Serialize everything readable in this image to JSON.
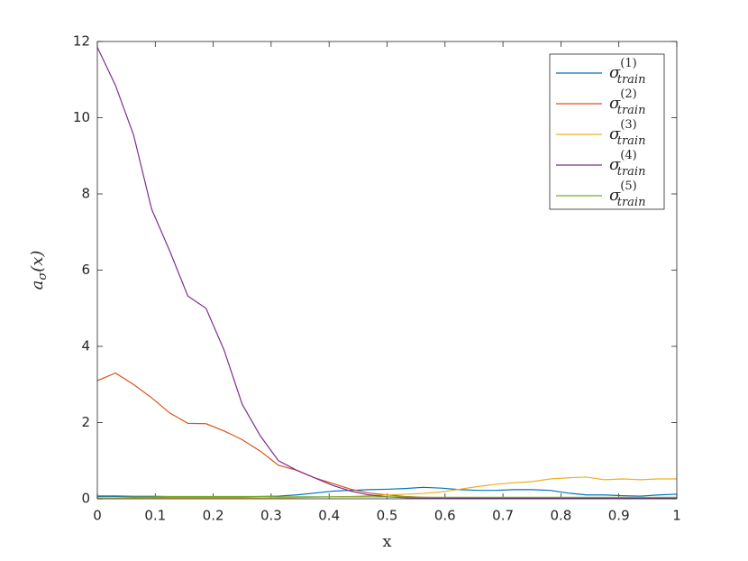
{
  "chart_data": {
    "type": "line",
    "xlabel": "x",
    "ylabel": "aσ(x)",
    "x": [
      0,
      0.03125,
      0.0625,
      0.09375,
      0.125,
      0.15625,
      0.1875,
      0.21875,
      0.25,
      0.28125,
      0.3125,
      0.34375,
      0.375,
      0.40625,
      0.4375,
      0.46875,
      0.5,
      0.53125,
      0.5625,
      0.59375,
      0.625,
      0.65625,
      0.6875,
      0.71875,
      0.75,
      0.78125,
      0.8125,
      0.84375,
      0.875,
      0.90625,
      0.9375,
      0.96875,
      1
    ],
    "series": [
      {
        "name": "σ(1)train",
        "color": "#0072bd",
        "values": [
          0.06,
          0.06,
          0.05,
          0.05,
          0.05,
          0.05,
          0.05,
          0.05,
          0.05,
          0.06,
          0.07,
          0.1,
          0.15,
          0.2,
          0.22,
          0.24,
          0.25,
          0.27,
          0.3,
          0.28,
          0.24,
          0.22,
          0.22,
          0.24,
          0.24,
          0.22,
          0.15,
          0.1,
          0.1,
          0.08,
          0.07,
          0.1,
          0.12
        ]
      },
      {
        "name": "σ(2)train",
        "color": "#d95319",
        "values": [
          3.1,
          3.3,
          3.0,
          2.65,
          2.25,
          1.98,
          1.97,
          1.78,
          1.55,
          1.25,
          0.88,
          0.75,
          0.55,
          0.4,
          0.25,
          0.15,
          0.1,
          0.06,
          0.04,
          0.03,
          0.02,
          0.02,
          0.02,
          0.02,
          0.02,
          0.02,
          0.02,
          0.02,
          0.02,
          0.02,
          0.02,
          0.02,
          0.02
        ]
      },
      {
        "name": "σ(3)train",
        "color": "#edb120",
        "values": [
          0.02,
          0.02,
          0.02,
          0.02,
          0.02,
          0.02,
          0.02,
          0.02,
          0.02,
          0.02,
          0.02,
          0.03,
          0.04,
          0.05,
          0.06,
          0.08,
          0.1,
          0.12,
          0.14,
          0.18,
          0.25,
          0.32,
          0.38,
          0.42,
          0.45,
          0.52,
          0.55,
          0.57,
          0.5,
          0.52,
          0.5,
          0.52,
          0.52
        ]
      },
      {
        "name": "σ(4)train",
        "color": "#7e2f8e",
        "values": [
          11.85,
          10.85,
          9.55,
          7.6,
          6.5,
          5.32,
          5.0,
          3.9,
          2.48,
          1.65,
          1.0,
          0.75,
          0.55,
          0.35,
          0.2,
          0.1,
          0.05,
          0.03,
          0.02,
          0.02,
          0.01,
          0.01,
          0.01,
          0.01,
          0.01,
          0.01,
          0.01,
          0.01,
          0.01,
          0.01,
          0.01,
          0.01,
          0.01
        ]
      },
      {
        "name": "σ(5)train",
        "color": "#77ac30",
        "values": [
          0.08,
          0.08,
          0.07,
          0.07,
          0.06,
          0.06,
          0.06,
          0.06,
          0.06,
          0.06,
          0.05,
          0.05,
          0.05,
          0.05,
          0.05,
          0.05,
          0.05,
          0.05,
          0.04,
          0.04,
          0.04,
          0.04,
          0.04,
          0.04,
          0.04,
          0.04,
          0.04,
          0.04,
          0.04,
          0.04,
          0.04,
          0.04,
          0.04
        ]
      }
    ],
    "xlim": [
      0,
      1
    ],
    "xticks": [
      0,
      0.1,
      0.2,
      0.3,
      0.4,
      0.5,
      0.6,
      0.7,
      0.8,
      0.9,
      1
    ],
    "ylim": [
      0,
      12
    ],
    "yticks": [
      0,
      2,
      4,
      6,
      8,
      10,
      12
    ],
    "legend": "upper right"
  }
}
